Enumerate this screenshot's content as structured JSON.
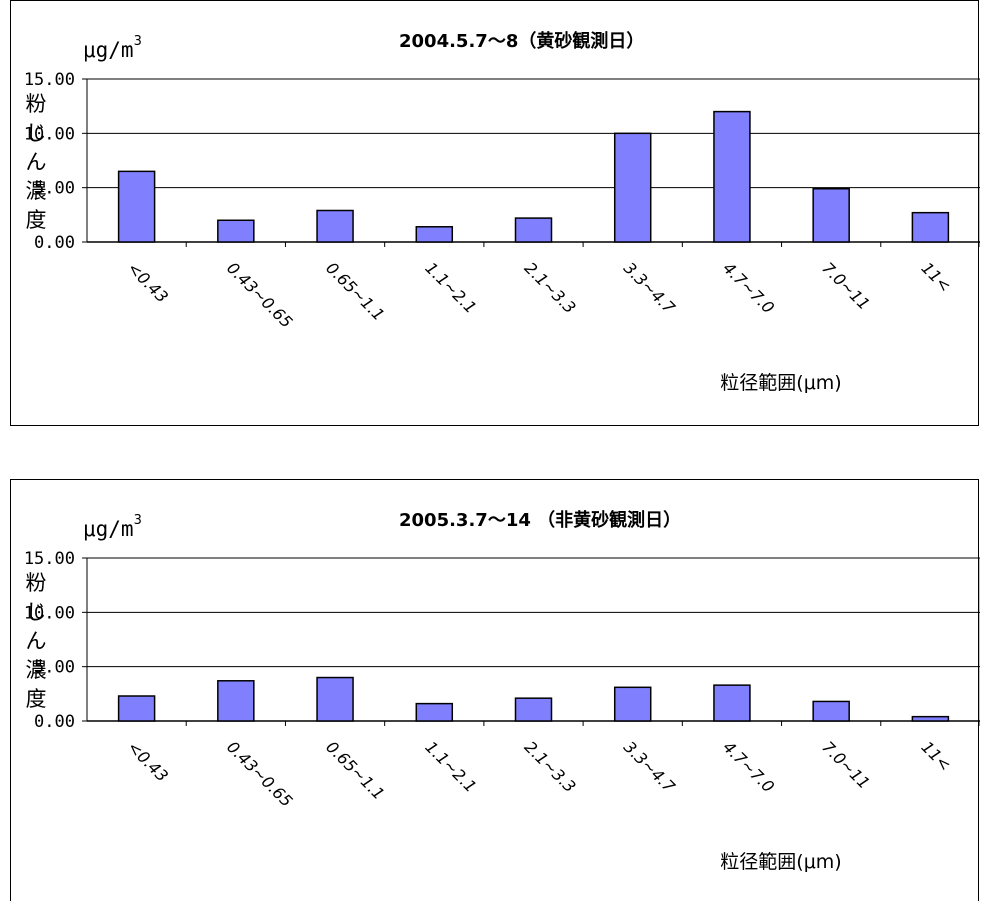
{
  "chart_data": [
    {
      "type": "bar",
      "title": "2004.5.7～8（黄砂観測日）",
      "unit_label": "μg/m",
      "unit_superscript": "3",
      "ylabel": "粉じん濃度",
      "xlabel": "粒径範囲(μm)",
      "ylim": [
        0,
        15
      ],
      "yticks": [
        "15.00",
        "10.00",
        "5.00",
        "0.00"
      ],
      "ytick_values": [
        15,
        10,
        5,
        0
      ],
      "grid": true,
      "categories": [
        "<0.43",
        "0.43~0.65",
        "0.65~1.1",
        "1.1~2.1",
        "2.1~3.3",
        "3.3~4.7",
        "4.7~7.0",
        "7.0~11",
        "11<"
      ],
      "values": [
        6.5,
        2.0,
        2.9,
        1.4,
        2.2,
        10.0,
        12.0,
        4.9,
        2.7
      ],
      "bar_color": "#8080FF"
    },
    {
      "type": "bar",
      "title": "2005.3.7～14 （非黄砂観測日）",
      "unit_label": "μg/m",
      "unit_superscript": "3",
      "ylabel": "粉じん濃度",
      "xlabel": "粒径範囲(μm)",
      "ylim": [
        0,
        15
      ],
      "yticks": [
        "15.00",
        "10.00",
        "5.00",
        "0.00"
      ],
      "ytick_values": [
        15,
        10,
        5,
        0
      ],
      "grid": true,
      "categories": [
        "<0.43",
        "0.43~0.65",
        "0.65~1.1",
        "1.1~2.1",
        "2.1~3.3",
        "3.3~4.7",
        "4.7~7.0",
        "7.0~11",
        "11<"
      ],
      "values": [
        2.3,
        3.7,
        4.0,
        1.6,
        2.1,
        3.1,
        3.3,
        1.8,
        0.4
      ],
      "bar_color": "#8080FF"
    }
  ]
}
